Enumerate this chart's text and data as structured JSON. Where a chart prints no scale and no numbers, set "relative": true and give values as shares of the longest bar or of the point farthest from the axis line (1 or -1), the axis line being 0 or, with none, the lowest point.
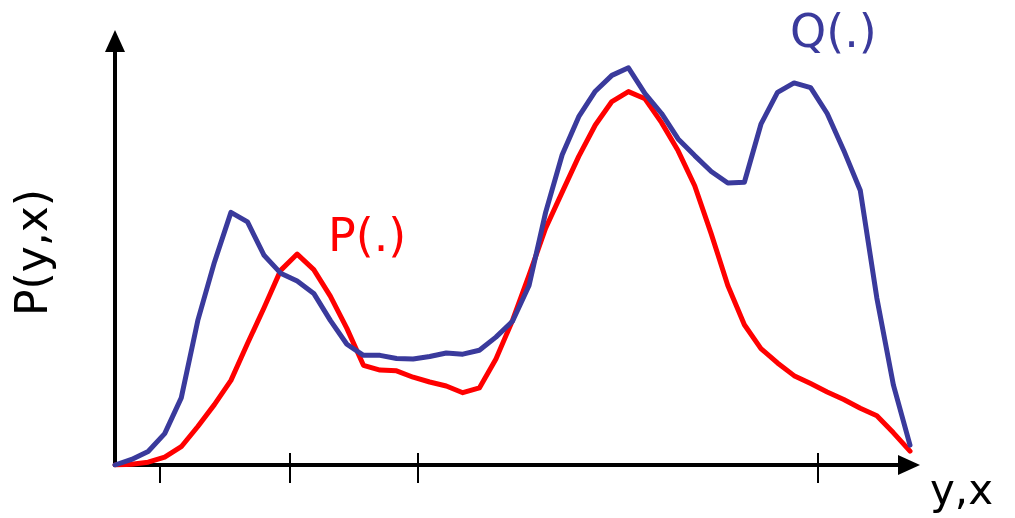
{
  "chart_data": {
    "type": "line",
    "relative": true,
    "xlabel": "y,x",
    "ylabel": "P(y,x)",
    "grid": false,
    "legend": false,
    "marker": "none",
    "line_style": "solid",
    "categories": [
      null,
      null,
      null,
      null,
      null,
      null,
      null,
      null,
      null,
      null,
      null,
      null,
      null,
      null,
      null,
      null,
      null,
      null,
      null,
      null,
      null,
      null,
      null,
      null,
      null,
      null,
      null,
      null,
      null,
      null,
      null,
      null,
      null,
      null,
      null,
      null,
      null,
      null,
      null,
      null,
      null,
      null,
      null,
      null,
      null,
      null,
      null,
      null,
      null
    ],
    "series": [
      {
        "name": "P(.)",
        "color": "#ff0000",
        "values": [
          0,
          0.002,
          0.007,
          0.02,
          0.046,
          0.097,
          0.152,
          0.213,
          0.306,
          0.396,
          0.49,
          0.531,
          0.492,
          0.425,
          0.344,
          0.251,
          0.239,
          0.237,
          0.221,
          0.209,
          0.199,
          0.182,
          0.194,
          0.267,
          0.364,
          0.478,
          0.596,
          0.687,
          0.777,
          0.856,
          0.915,
          0.94,
          0.922,
          0.862,
          0.791,
          0.703,
          0.582,
          0.452,
          0.353,
          0.293,
          0.257,
          0.225,
          0.205,
          0.184,
          0.165,
          0.143,
          0.124,
          0.081,
          0.035
        ]
      },
      {
        "name": "Q(.)",
        "color": "#3a3a9c",
        "values": [
          0,
          0.014,
          0.034,
          0.079,
          0.169,
          0.364,
          0.51,
          0.636,
          0.612,
          0.528,
          0.483,
          0.463,
          0.432,
          0.364,
          0.304,
          0.276,
          0.276,
          0.268,
          0.267,
          0.273,
          0.282,
          0.279,
          0.289,
          0.322,
          0.362,
          0.452,
          0.636,
          0.781,
          0.877,
          0.941,
          0.981,
          1,
          0.935,
          0.885,
          0.821,
          0.779,
          0.739,
          0.71,
          0.712,
          0.858,
          0.938,
          0.962,
          0.95,
          0.885,
          0.792,
          0.691,
          0.42,
          0.201,
          0.05
        ]
      }
    ]
  }
}
